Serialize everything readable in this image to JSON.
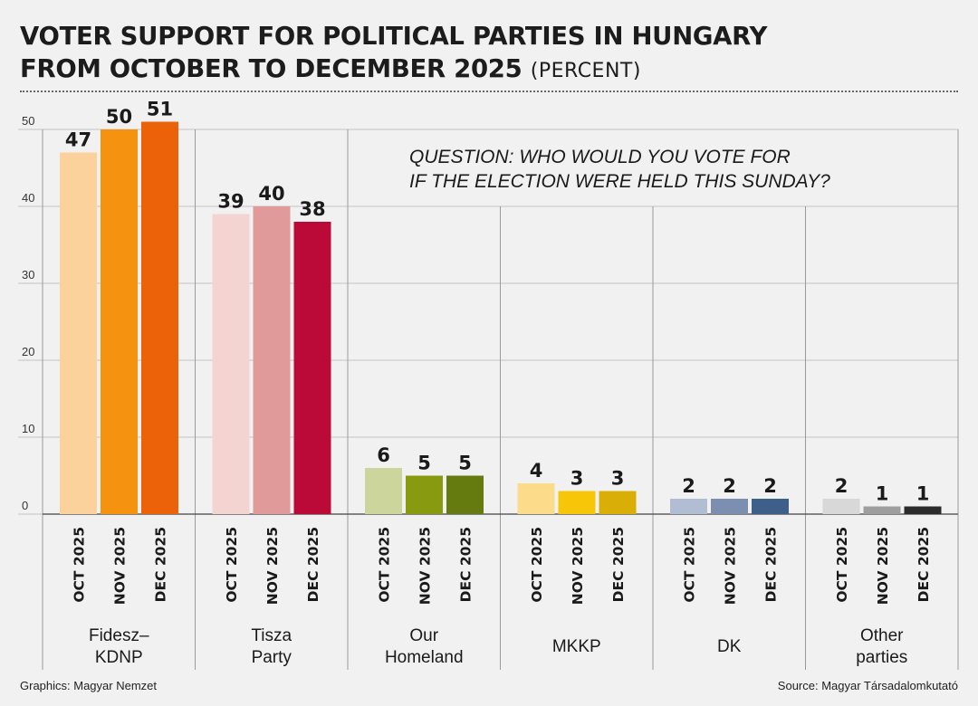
{
  "title": {
    "line1": "VOTER SUPPORT FOR POLITICAL PARTIES IN HUNGARY",
    "line2": "FROM OCTOBER TO DECEMBER 2025",
    "unit": "(PERCENT)"
  },
  "question": {
    "line1": "QUESTION: WHO WOULD YOU VOTE FOR",
    "line2": "IF THE ELECTION WERE HELD THIS SUNDAY?"
  },
  "footer": {
    "graphics": "Graphics: Magyar Nemzet",
    "source": "Source: Magyar Társadalomkutató"
  },
  "chart_data": {
    "type": "bar",
    "title": "VOTER SUPPORT FOR POLITICAL PARTIES IN HUNGARY FROM OCTOBER TO DECEMBER 2025 (PERCENT)",
    "xlabel": "",
    "ylabel": "",
    "ylim": [
      0,
      50
    ],
    "yticks": [
      0,
      10,
      20,
      30,
      40,
      50
    ],
    "grid": true,
    "series_names": [
      "OCT 2025",
      "NOV 2025",
      "DEC 2025"
    ],
    "groups": [
      {
        "name": [
          "Fidesz–",
          "KDNP"
        ],
        "values": [
          47,
          50,
          51
        ],
        "colors": [
          "#fbd29b",
          "#f5920f",
          "#ec6208"
        ]
      },
      {
        "name": [
          "Tisza",
          "Party"
        ],
        "values": [
          39,
          40,
          38
        ],
        "colors": [
          "#f3d4d1",
          "#e09a99",
          "#bb0a37"
        ]
      },
      {
        "name": [
          "Our",
          "Homeland"
        ],
        "values": [
          6,
          5,
          5
        ],
        "colors": [
          "#cbd59c",
          "#879a10",
          "#657b0f"
        ]
      },
      {
        "name": [
          "MKKP"
        ],
        "values": [
          4,
          3,
          3
        ],
        "colors": [
          "#fcdc8a",
          "#f7c608",
          "#d9ae06"
        ]
      },
      {
        "name": [
          "DK"
        ],
        "values": [
          2,
          2,
          2
        ],
        "colors": [
          "#b0bdd2",
          "#7c8fb0",
          "#3f5f8b"
        ]
      },
      {
        "name": [
          "Other",
          "parties"
        ],
        "values": [
          2,
          1,
          1
        ],
        "colors": [
          "#d8d8d8",
          "#9e9e9e",
          "#2b2b2b"
        ]
      }
    ]
  }
}
